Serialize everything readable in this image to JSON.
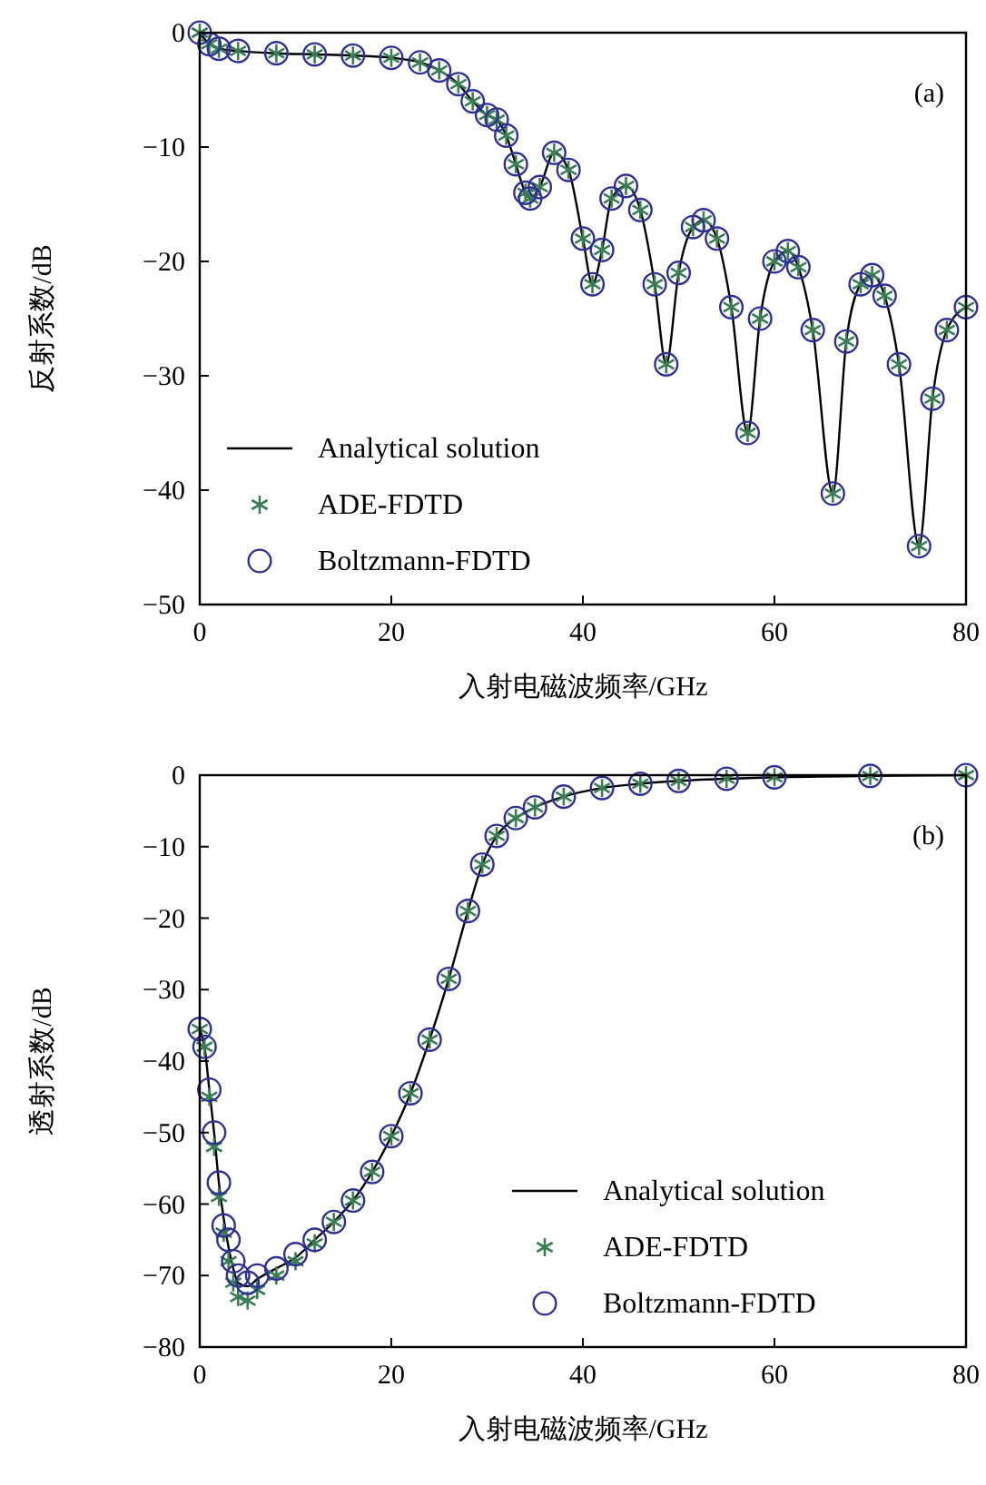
{
  "chart_data": [
    {
      "type": "scatter",
      "annotations": [
        "(a)"
      ],
      "xlabel": "入射电磁波频率/GHz",
      "ylabel": "反射系数/dB",
      "xlim": [
        0,
        80
      ],
      "ylim": [
        -50,
        0
      ],
      "xticks": [
        0,
        20,
        40,
        60,
        80
      ],
      "yticks": [
        {
          "value": -50,
          "label": "−50"
        },
        {
          "value": -40,
          "label": "−40"
        },
        {
          "value": -30,
          "label": "−30"
        },
        {
          "value": -20,
          "label": "−20"
        },
        {
          "value": -10,
          "label": "−10"
        },
        0
      ],
      "legend": "bottom left",
      "x": [
        0,
        1,
        2,
        4,
        8,
        12,
        16,
        20,
        23,
        25,
        27,
        28.5,
        30,
        31,
        32,
        33,
        34,
        34.5,
        35.5,
        37,
        38.5,
        40,
        41,
        42,
        43,
        44.5,
        46,
        47.5,
        48.7,
        50,
        51.5,
        52.6,
        54,
        55.5,
        57.2,
        58.5,
        60,
        61.4,
        62.5,
        64,
        66.1,
        67.5,
        69,
        70.2,
        71.5,
        73,
        75.1,
        76.5,
        78,
        80
      ],
      "series": [
        {
          "name": "Analytical solution",
          "type": "line",
          "color": "#000000",
          "marker": "none",
          "line_style": "solid",
          "values": [
            0,
            -1,
            -1.4,
            -1.6,
            -1.8,
            -1.9,
            -2,
            -2.2,
            -2.6,
            -3.3,
            -4.5,
            -6,
            -7.2,
            -7.6,
            -9,
            -11.5,
            -14,
            -14.5,
            -13.5,
            -10.5,
            -12,
            -18,
            -22,
            -19,
            -14.5,
            -13.4,
            -15.5,
            -22,
            -29,
            -21,
            -17,
            -16.4,
            -18,
            -24,
            -35,
            -25,
            -20,
            -19.1,
            -20.5,
            -26,
            -40.3,
            -27,
            -22,
            -21.2,
            -23,
            -29,
            -44.9,
            -32,
            -26,
            -24
          ]
        },
        {
          "name": "ADE-FDTD",
          "color": "#3a7d55",
          "marker": "cross",
          "values": [
            0,
            -1,
            -1.4,
            -1.6,
            -1.8,
            -1.9,
            -2,
            -2.2,
            -2.6,
            -3.3,
            -4.5,
            -6,
            -7.2,
            -7.6,
            -9,
            -11.5,
            -14,
            -14.5,
            -13.5,
            -10.5,
            -12,
            -18,
            -22,
            -19,
            -14.5,
            -13.4,
            -15.5,
            -22,
            -29,
            -21,
            -17,
            -16.4,
            -18,
            -24,
            -35,
            -25,
            -20,
            -19.1,
            -20.5,
            -26,
            -40.3,
            -27,
            -22,
            -21.2,
            -23,
            -29,
            -44.9,
            -32,
            -26,
            -24
          ]
        },
        {
          "name": "Boltzmann-FDTD",
          "color": "#2e3192",
          "marker": "circle",
          "values": [
            0,
            -1,
            -1.4,
            -1.6,
            -1.8,
            -1.9,
            -2,
            -2.2,
            -2.6,
            -3.3,
            -4.5,
            -6,
            -7.2,
            -7.6,
            -9,
            -11.5,
            -14,
            -14.5,
            -13.5,
            -10.5,
            -12,
            -18,
            -22,
            -19,
            -14.5,
            -13.4,
            -15.5,
            -22,
            -29,
            -21,
            -17,
            -16.4,
            -18,
            -24,
            -35,
            -25,
            -20,
            -19.1,
            -20.5,
            -26,
            -40.3,
            -27,
            -22,
            -21.2,
            -23,
            -29,
            -44.9,
            -32,
            -26,
            -24
          ]
        }
      ]
    },
    {
      "type": "scatter",
      "annotations": [
        "(b)"
      ],
      "xlabel": "入射电磁波频率/GHz",
      "ylabel": "透射系数/dB",
      "xlim": [
        0,
        80
      ],
      "ylim": [
        -80,
        0
      ],
      "xticks": [
        0,
        20,
        40,
        60,
        80
      ],
      "yticks": [
        {
          "value": -80,
          "label": "−80"
        },
        {
          "value": -70,
          "label": "−70"
        },
        {
          "value": -60,
          "label": "−60"
        },
        {
          "value": -50,
          "label": "−50"
        },
        {
          "value": -40,
          "label": "−40"
        },
        {
          "value": -30,
          "label": "−30"
        },
        {
          "value": -20,
          "label": "−20"
        },
        {
          "value": -10,
          "label": "−10"
        },
        0
      ],
      "legend": "bottom right",
      "x": [
        0,
        0.5,
        1,
        1.5,
        2,
        2.5,
        3,
        3.5,
        4,
        5,
        6,
        8,
        10,
        12,
        14,
        16,
        18,
        20,
        22,
        24,
        26,
        28,
        29.5,
        31,
        33,
        35,
        38,
        42,
        46,
        50,
        55,
        60,
        70,
        80
      ],
      "series": [
        {
          "name": "Analytical solution",
          "type": "line",
          "color": "#000000",
          "marker": "none",
          "line_style": "solid",
          "values": [
            -35.5,
            -38,
            -44,
            -50,
            -57,
            -62,
            -66,
            -69,
            -71,
            -71.5,
            -70.5,
            -69,
            -67.5,
            -65,
            -62.5,
            -59.5,
            -55.5,
            -50.5,
            -44.5,
            -37,
            -28.5,
            -19,
            -12.5,
            -8.5,
            -6,
            -4.5,
            -3,
            -1.8,
            -1.2,
            -0.8,
            -0.5,
            -0.3,
            -0.1,
            0
          ]
        },
        {
          "name": "ADE-FDTD",
          "color": "#3a7d55",
          "marker": "cross",
          "values": [
            -35.5,
            -38,
            -45,
            -52,
            -59,
            -64,
            -68,
            -71,
            -73,
            -73.5,
            -72,
            -70,
            -68,
            -65.5,
            -62.5,
            -59.5,
            -55.5,
            -50.5,
            -44.5,
            -37,
            -28.5,
            -19,
            -12.5,
            -8.5,
            -6,
            -4.5,
            -3,
            -1.8,
            -1.2,
            -0.8,
            -0.5,
            -0.3,
            -0.1,
            0
          ]
        },
        {
          "name": "Boltzmann-FDTD",
          "color": "#2e3192",
          "marker": "circle",
          "values": [
            -35.5,
            -38,
            -44,
            -50,
            -57,
            -63,
            -65,
            -68,
            -70,
            -71,
            -70,
            -69,
            -67,
            -65,
            -62.5,
            -59.5,
            -55.5,
            -50.5,
            -44.5,
            -37,
            -28.5,
            -19,
            -12.5,
            -8.5,
            -6,
            -4.5,
            -3,
            -1.8,
            -1.2,
            -0.8,
            -0.5,
            -0.3,
            -0.1,
            0
          ]
        }
      ]
    }
  ]
}
